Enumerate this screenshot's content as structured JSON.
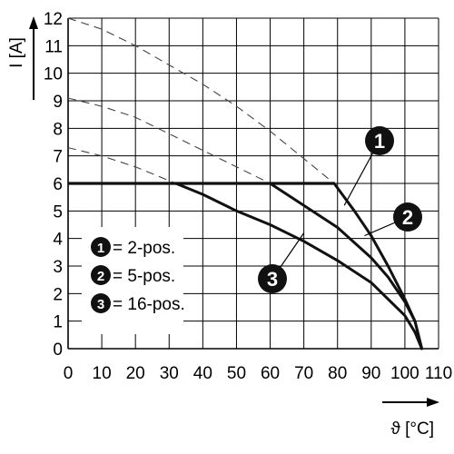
{
  "chart_data": {
    "type": "line",
    "title": "",
    "xlabel": "ϑ [°C]",
    "ylabel": "I [A]",
    "xlim": [
      0,
      110
    ],
    "ylim": [
      0,
      12
    ],
    "xticks": [
      0,
      10,
      20,
      30,
      40,
      50,
      60,
      70,
      80,
      90,
      100,
      110
    ],
    "yticks": [
      0,
      1,
      2,
      3,
      4,
      5,
      6,
      7,
      8,
      9,
      10,
      11,
      12
    ],
    "grid": true,
    "legend_position": "left",
    "legend": [
      {
        "number": "1",
        "label": "= 2-pos."
      },
      {
        "number": "2",
        "label": "= 5-pos."
      },
      {
        "number": "3",
        "label": "= 16-pos."
      }
    ],
    "cap": {
      "y": 6,
      "x": [
        0,
        79
      ]
    },
    "series": [
      {
        "name": "2-pos.",
        "marker": "1",
        "values": [
          [
            0,
            12.0
          ],
          [
            10,
            11.6
          ],
          [
            20,
            11.0
          ],
          [
            30,
            10.3
          ],
          [
            40,
            9.6
          ],
          [
            50,
            8.8
          ],
          [
            60,
            7.9
          ],
          [
            70,
            6.9
          ],
          [
            79,
            6.0
          ],
          [
            85,
            5.0
          ],
          [
            90,
            4.1
          ],
          [
            95,
            3.0
          ],
          [
            100,
            1.8
          ],
          [
            103,
            1.0
          ],
          [
            105,
            0
          ]
        ]
      },
      {
        "name": "5-pos.",
        "marker": "2",
        "values": [
          [
            0,
            9.1
          ],
          [
            10,
            8.8
          ],
          [
            20,
            8.4
          ],
          [
            30,
            7.8
          ],
          [
            40,
            7.2
          ],
          [
            50,
            6.6
          ],
          [
            60,
            6.0
          ],
          [
            70,
            5.2
          ],
          [
            80,
            4.4
          ],
          [
            90,
            3.3
          ],
          [
            95,
            2.6
          ],
          [
            100,
            1.7
          ],
          [
            103,
            1.0
          ],
          [
            105,
            0
          ]
        ]
      },
      {
        "name": "16-pos.",
        "marker": "3",
        "values": [
          [
            0,
            7.3
          ],
          [
            10,
            7.0
          ],
          [
            20,
            6.6
          ],
          [
            32,
            6.0
          ],
          [
            40,
            5.6
          ],
          [
            50,
            5.0
          ],
          [
            60,
            4.5
          ],
          [
            70,
            3.9
          ],
          [
            80,
            3.2
          ],
          [
            90,
            2.4
          ],
          [
            95,
            1.8
          ],
          [
            100,
            1.2
          ],
          [
            103,
            0.6
          ],
          [
            105,
            0
          ]
        ]
      }
    ],
    "callouts": [
      {
        "marker": "1",
        "at": [
          82,
          5.2
        ]
      },
      {
        "marker": "2",
        "at": [
          88,
          4.1
        ]
      },
      {
        "marker": "3",
        "at": [
          70,
          4.2
        ]
      }
    ],
    "colors": {
      "axis": "#000000",
      "grid": "#000000",
      "curve": "#111111",
      "dashed": "#444444",
      "badge": "#111111"
    }
  }
}
